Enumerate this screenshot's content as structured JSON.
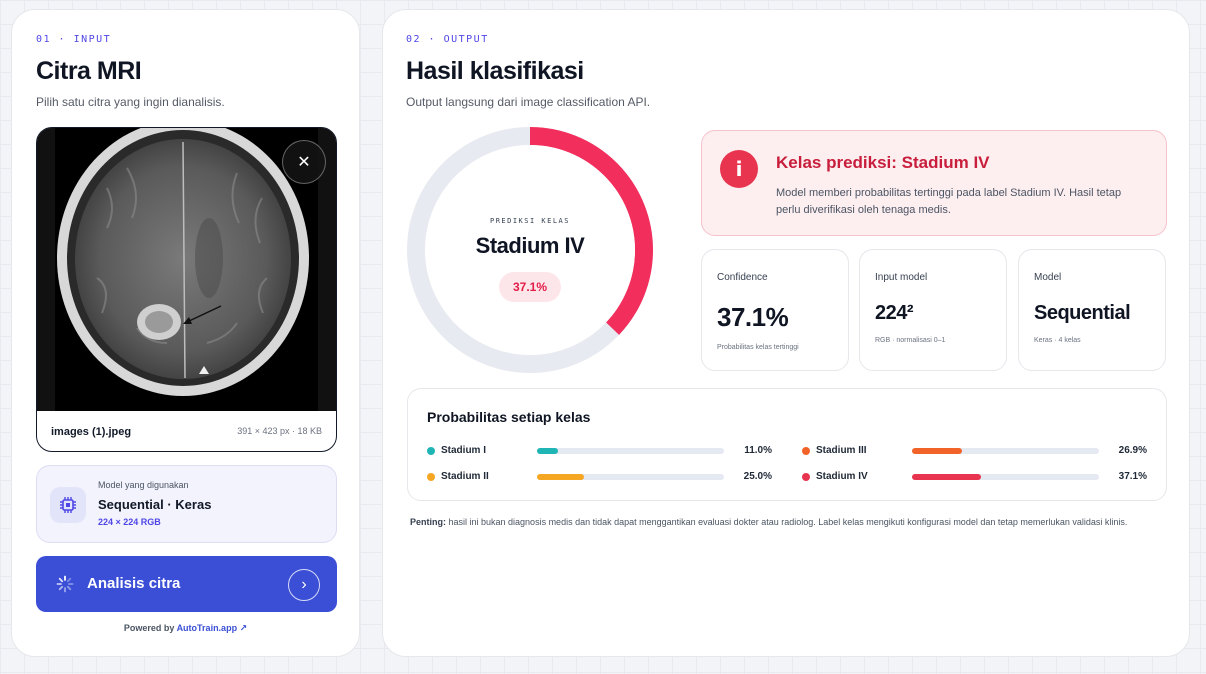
{
  "input": {
    "eyebrow": "01 · INPUT",
    "title": "Citra MRI",
    "subtitle": "Pilih satu citra yang ingin dianalisis.",
    "file_name": "images (1).jpeg",
    "file_meta": "391 × 423 px · 18 KB",
    "close_icon": "close-icon",
    "model_label": "Model yang digunakan",
    "model_name": "Sequential · Keras",
    "model_dims": "224 × 224 RGB",
    "analyze_label": "Analisis citra",
    "powered_prefix": "Powered by",
    "powered_link": "AutoTrain.app ↗"
  },
  "output": {
    "eyebrow": "02 · OUTPUT",
    "title": "Hasil klasifikasi",
    "subtitle": "Output langsung dari image classification API.",
    "gauge": {
      "label": "PREDIKSI KELAS",
      "class": "Stadium IV",
      "percent_text": "37.1%",
      "value": 37.1,
      "color": "#f22e5c"
    },
    "alert": {
      "title": "Kelas prediksi: Stadium IV",
      "text": "Model memberi probabilitas tertinggi pada label Stadium IV. Hasil tetap perlu diverifikasi oleh tenaga medis."
    },
    "stats": [
      {
        "label": "Confidence",
        "value": "37.1%",
        "note": "Probabilitas kelas tertinggi"
      },
      {
        "label": "Input model",
        "value": "224²",
        "note": "RGB · normalisasi 0–1"
      },
      {
        "label": "Model",
        "value": "Sequential",
        "note": "Keras · 4 kelas"
      }
    ],
    "probs_title": "Probabilitas setiap kelas",
    "probs": [
      {
        "name": "Stadium I",
        "value": 11.0,
        "text": "11.0%",
        "color": "#1fb5b5"
      },
      {
        "name": "Stadium III",
        "value": 26.9,
        "text": "26.9%",
        "color": "#f2632a"
      },
      {
        "name": "Stadium II",
        "value": 25.0,
        "text": "25.0%",
        "color": "#f5a623"
      },
      {
        "name": "Stadium IV",
        "value": 37.1,
        "text": "37.1%",
        "color": "#e8344e"
      }
    ],
    "note_bold": "Penting:",
    "note_text": " hasil ini bukan diagnosis medis dan tidak dapat menggantikan evaluasi dokter atau radiolog. Label kelas mengikuti konfigurasi model dan tetap memerlukan validasi klinis."
  }
}
